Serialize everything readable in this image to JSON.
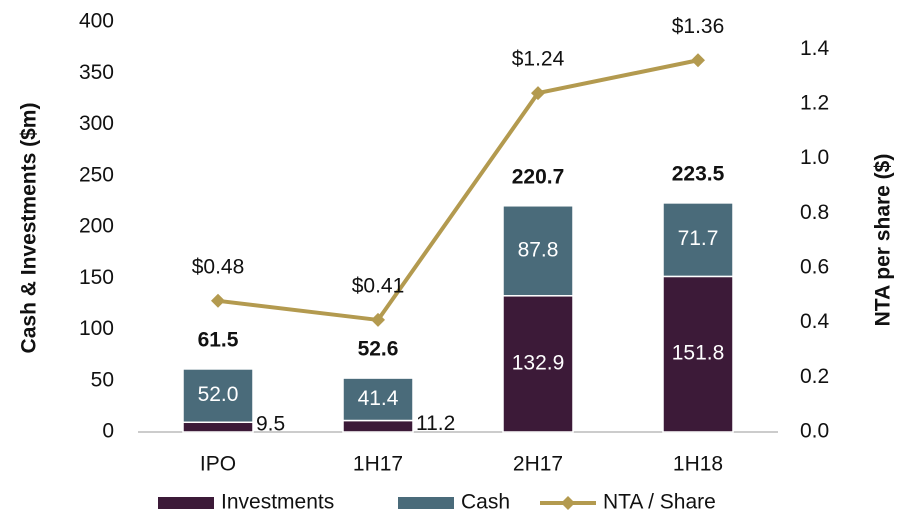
{
  "chart_data": {
    "type": "bar",
    "categories": [
      "IPO",
      "1H17",
      "2H17",
      "1H18"
    ],
    "series": [
      {
        "name": "Investments",
        "color": "#3c1a38",
        "values": [
          9.5,
          11.2,
          132.9,
          151.8
        ],
        "value_labels": [
          "9.5",
          "11.2",
          "132.9",
          "151.8"
        ]
      },
      {
        "name": "Cash",
        "color": "#4a6b7a",
        "values": [
          52.0,
          41.4,
          87.8,
          71.7
        ],
        "value_labels": [
          "52.0",
          "41.4",
          "87.8",
          "71.7"
        ]
      },
      {
        "name": "NTA / Share",
        "color": "#b39a4f",
        "axis": "y2",
        "type": "line",
        "values": [
          0.48,
          0.41,
          1.24,
          1.36
        ],
        "value_labels": [
          "$0.48",
          "$0.41",
          "$1.24",
          "$1.36"
        ]
      }
    ],
    "totals": [
      61.5,
      52.6,
      220.7,
      223.5
    ],
    "ylabel": "Cash & Investments ($m)",
    "y2label": "NTA per share ($)",
    "ylim": [
      0,
      400
    ],
    "yticks": [
      0,
      50,
      100,
      150,
      200,
      250,
      300,
      350,
      400
    ],
    "y2lim": [
      0,
      1.5
    ],
    "y2ticks": [
      {
        "value": 0,
        "label": "0.0"
      },
      0.2,
      0.4,
      0.6,
      0.8,
      {
        "value": 1,
        "label": "1.0"
      },
      1.2,
      1.4
    ],
    "legend": "bottom"
  }
}
